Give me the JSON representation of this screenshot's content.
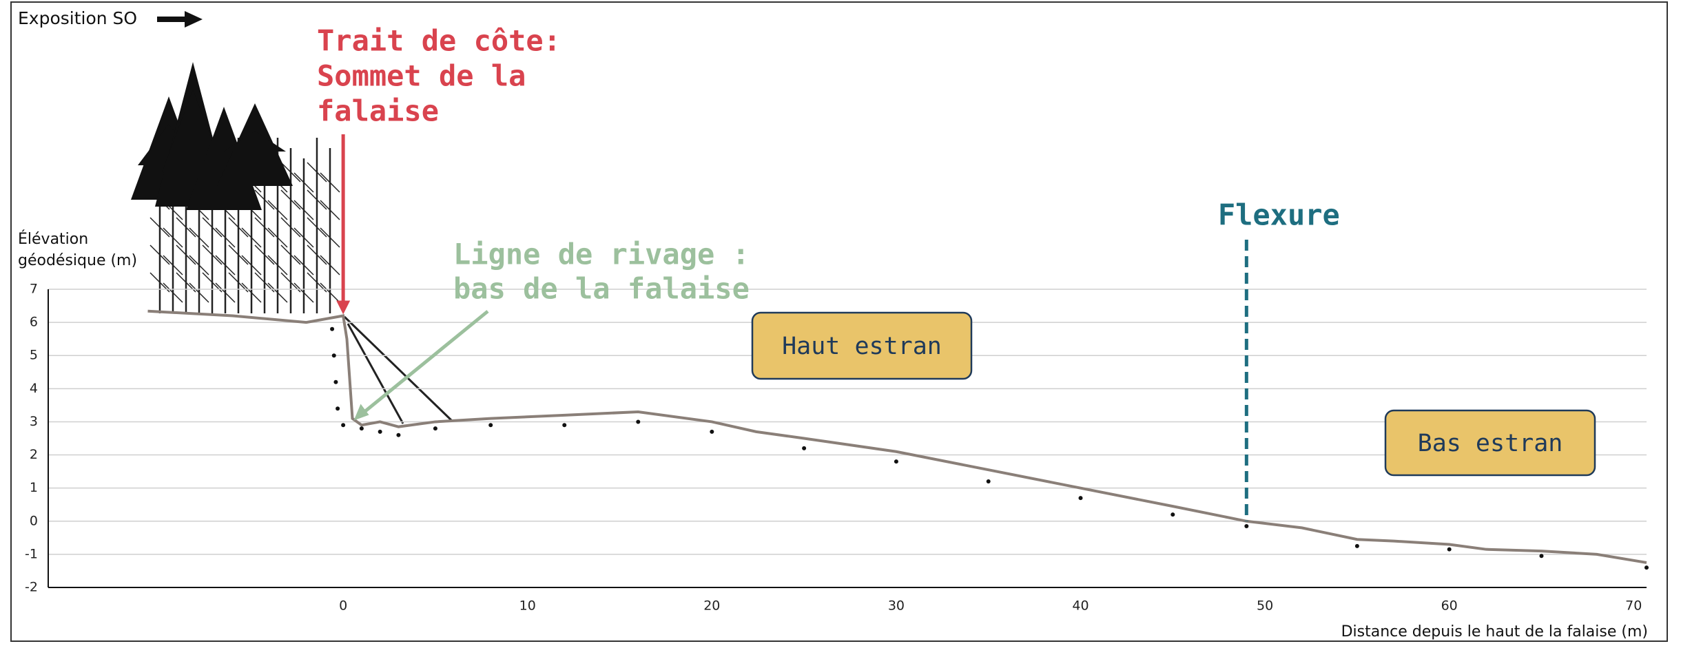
{
  "chart_data": {
    "type": "line",
    "corner_label": "Exposition SO",
    "y_label": [
      "Élévation",
      "géodésique (m)"
    ],
    "x_label": "Distance depuis le haut de la falaise (m)",
    "xlim": [
      -16,
      70.7
    ],
    "ylim": [
      -2,
      7
    ],
    "xticks": [
      0,
      10,
      20,
      30,
      40,
      50,
      60,
      70
    ],
    "yticks": [
      -2,
      -1,
      0,
      1,
      2,
      3,
      4,
      5,
      6,
      7
    ],
    "grid": true,
    "series": [
      {
        "color": "#8a7f78",
        "style": "solid",
        "x": [
          -10.6,
          -6,
          -2,
          0,
          0.2,
          0.5,
          1,
          2,
          3,
          5,
          8,
          12,
          16,
          20,
          22.4,
          25,
          30,
          35,
          40,
          45,
          49,
          52,
          55,
          57,
          60,
          62,
          65,
          68,
          70.7
        ],
        "values": [
          6.34,
          6.2,
          6.0,
          6.2,
          5.5,
          3.1,
          2.9,
          3.0,
          2.85,
          3.0,
          3.1,
          3.2,
          3.3,
          3.0,
          2.7,
          2.5,
          2.1,
          1.55,
          1.0,
          0.45,
          0,
          -0.2,
          -0.55,
          -0.6,
          -0.7,
          -0.85,
          -0.9,
          -1.0,
          -1.25
        ]
      },
      {
        "color": "#111111",
        "style": "dots",
        "x": [
          -0.6,
          -0.5,
          -0.4,
          -0.3,
          0,
          1,
          2,
          3,
          5,
          8,
          12,
          16,
          20,
          25,
          30,
          35,
          40,
          45,
          49,
          55,
          60,
          65,
          70.7
        ],
        "values": [
          5.8,
          5.0,
          4.2,
          3.4,
          2.9,
          2.8,
          2.7,
          2.6,
          2.8,
          2.9,
          2.9,
          3.0,
          2.7,
          2.2,
          1.8,
          1.2,
          0.7,
          0.2,
          -0.15,
          -0.75,
          -0.85,
          -1.05,
          -1.4
        ]
      }
    ],
    "annotations": {
      "trait_de_cote": {
        "lines": [
          "Trait de côte:",
          "Sommet de la",
          "falaise"
        ],
        "color": "#d9434e",
        "x": 0,
        "y": 6.2
      },
      "ligne_de_rivage": {
        "lines": [
          "Ligne de rivage :",
          "bas de la falaise"
        ],
        "color": "#9cc09d",
        "x": 0.5,
        "y": 3.0
      },
      "flexure": {
        "text": "Flexure",
        "color": "#1e6e80",
        "x": 49
      },
      "haut_estran": {
        "text": "Haut estran"
      },
      "bas_estran": {
        "text": "Bas estran"
      }
    }
  }
}
